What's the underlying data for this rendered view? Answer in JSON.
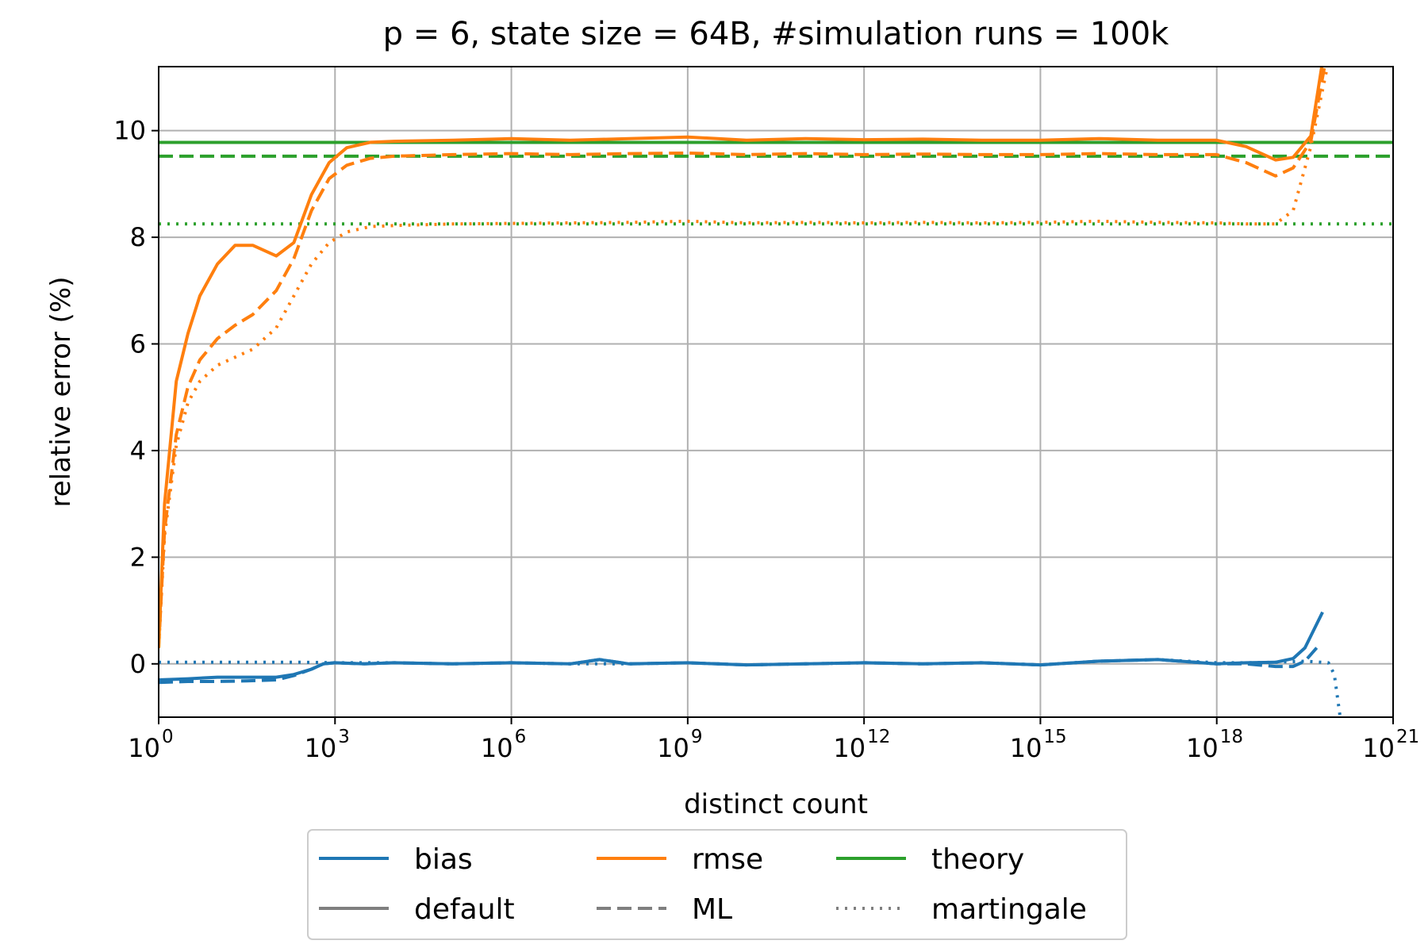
{
  "chart_data": {
    "type": "line",
    "title": "p = 6, state size = 64B, #simulation runs = 100k",
    "xlabel": "distinct count",
    "ylabel": "relative error (%)",
    "x_scale": "log10",
    "xlim_log10": [
      0,
      21
    ],
    "ylim": [
      -1,
      11.2
    ],
    "grid": true,
    "x_ticks": [
      {
        "base": "10",
        "exp": "0"
      },
      {
        "base": "10",
        "exp": "3"
      },
      {
        "base": "10",
        "exp": "6"
      },
      {
        "base": "10",
        "exp": "9"
      },
      {
        "base": "10",
        "exp": "12"
      },
      {
        "base": "10",
        "exp": "15"
      },
      {
        "base": "10",
        "exp": "18"
      },
      {
        "base": "10",
        "exp": "21"
      }
    ],
    "y_ticks": [
      "0",
      "2",
      "4",
      "6",
      "8",
      "10"
    ],
    "colors": {
      "bias": "#1f77b4",
      "rmse": "#ff7f0e",
      "theory": "#2ca02c",
      "estimator_key": "#7f7f7f",
      "grid": "#b0b0b0"
    },
    "theory_lines": [
      {
        "estimator": "default",
        "value": 9.78
      },
      {
        "estimator": "ML",
        "value": 9.52
      },
      {
        "estimator": "martingale",
        "value": 8.25
      }
    ],
    "series": [
      {
        "name": "rmse default",
        "metric": "rmse",
        "estimator": "default",
        "x_log10": [
          0,
          0.1,
          0.3,
          0.5,
          0.7,
          1.0,
          1.3,
          1.6,
          2.0,
          2.3,
          2.6,
          2.9,
          3.2,
          3.6,
          4.0,
          5,
          6,
          7,
          8,
          9,
          10,
          11,
          12,
          13,
          14,
          15,
          16,
          17,
          18,
          18.5,
          19.0,
          19.3,
          19.6,
          19.8
        ],
        "values": [
          0.3,
          3.0,
          5.3,
          6.2,
          6.9,
          7.5,
          7.85,
          7.85,
          7.65,
          7.9,
          8.8,
          9.4,
          9.68,
          9.78,
          9.8,
          9.82,
          9.85,
          9.82,
          9.85,
          9.88,
          9.82,
          9.85,
          9.83,
          9.84,
          9.82,
          9.82,
          9.85,
          9.82,
          9.82,
          9.7,
          9.45,
          9.5,
          9.9,
          11.3
        ]
      },
      {
        "name": "rmse ML",
        "metric": "rmse",
        "estimator": "ML",
        "x_log10": [
          0,
          0.1,
          0.3,
          0.5,
          0.7,
          1.0,
          1.3,
          1.6,
          2.0,
          2.3,
          2.6,
          2.9,
          3.2,
          3.6,
          4.0,
          5,
          6,
          7,
          8,
          9,
          10,
          11,
          12,
          13,
          14,
          15,
          16,
          17,
          18,
          18.5,
          19.0,
          19.3,
          19.6,
          19.85
        ],
        "values": [
          0.3,
          2.5,
          4.3,
          5.2,
          5.7,
          6.1,
          6.35,
          6.55,
          7.0,
          7.6,
          8.5,
          9.1,
          9.35,
          9.48,
          9.52,
          9.55,
          9.57,
          9.55,
          9.57,
          9.58,
          9.55,
          9.57,
          9.55,
          9.56,
          9.55,
          9.55,
          9.57,
          9.55,
          9.55,
          9.4,
          9.15,
          9.3,
          9.8,
          11.3
        ]
      },
      {
        "name": "rmse martingale",
        "metric": "rmse",
        "estimator": "martingale",
        "x_log10": [
          0,
          0.1,
          0.3,
          0.5,
          0.7,
          1.0,
          1.3,
          1.6,
          2.0,
          2.3,
          2.6,
          2.9,
          3.2,
          3.6,
          4.0,
          5,
          6,
          7,
          8,
          9,
          10,
          11,
          12,
          13,
          14,
          15,
          16,
          17,
          18,
          18.5,
          19.0,
          19.3,
          19.6,
          19.9
        ],
        "values": [
          0.3,
          2.4,
          4.1,
          4.9,
          5.3,
          5.6,
          5.75,
          5.9,
          6.3,
          6.9,
          7.5,
          7.9,
          8.1,
          8.2,
          8.22,
          8.25,
          8.26,
          8.27,
          8.28,
          8.3,
          8.27,
          8.28,
          8.27,
          8.28,
          8.27,
          8.28,
          8.3,
          8.28,
          8.27,
          8.25,
          8.25,
          8.5,
          9.7,
          11.3
        ]
      },
      {
        "name": "bias default",
        "metric": "bias",
        "estimator": "default",
        "x_log10": [
          0,
          0.5,
          1.0,
          1.5,
          2.0,
          2.3,
          2.6,
          2.8,
          3.0,
          3.5,
          4,
          5,
          6,
          7,
          7.5,
          8,
          9,
          10,
          11,
          12,
          13,
          14,
          15,
          16,
          17,
          18,
          18.5,
          19.0,
          19.3,
          19.5,
          19.8
        ],
        "values": [
          -0.3,
          -0.28,
          -0.25,
          -0.25,
          -0.25,
          -0.2,
          -0.1,
          0.0,
          0.02,
          0.0,
          0.02,
          0.0,
          0.02,
          0.0,
          0.08,
          0.0,
          0.02,
          -0.02,
          0.0,
          0.02,
          0.0,
          0.02,
          -0.02,
          0.05,
          0.08,
          0.0,
          0.02,
          0.03,
          0.1,
          0.3,
          0.97
        ]
      },
      {
        "name": "bias ML",
        "metric": "bias",
        "estimator": "ML",
        "x_log10": [
          0,
          0.5,
          1.0,
          1.5,
          2.0,
          2.3,
          2.6,
          2.8,
          3.0,
          3.5,
          4,
          5,
          6,
          7,
          7.5,
          8,
          9,
          10,
          11,
          12,
          13,
          14,
          15,
          16,
          17,
          18,
          18.5,
          19.0,
          19.3,
          19.5,
          19.7
        ],
        "values": [
          -0.35,
          -0.33,
          -0.33,
          -0.32,
          -0.3,
          -0.22,
          -0.1,
          0.0,
          0.02,
          0.0,
          0.02,
          0.0,
          0.02,
          0.0,
          0.08,
          0.0,
          0.02,
          -0.02,
          0.0,
          0.02,
          0.0,
          0.02,
          -0.02,
          0.05,
          0.08,
          0.0,
          0.0,
          -0.05,
          -0.05,
          0.05,
          0.3
        ]
      },
      {
        "name": "bias martingale",
        "metric": "bias",
        "estimator": "martingale",
        "x_log10": [
          0,
          0.5,
          1.0,
          1.5,
          2.0,
          2.5,
          3,
          4,
          5,
          6,
          7,
          8,
          9,
          10,
          11,
          12,
          13,
          14,
          15,
          16,
          17,
          18,
          18.5,
          19.0,
          19.5,
          19.9,
          20.0,
          20.05,
          20.1
        ],
        "values": [
          0.03,
          0.03,
          0.03,
          0.03,
          0.03,
          0.03,
          0.02,
          0.02,
          0.0,
          0.02,
          0.0,
          0.0,
          0.02,
          -0.02,
          0.0,
          0.02,
          0.0,
          0.02,
          -0.02,
          0.05,
          0.08,
          0.02,
          0.02,
          0.03,
          0.05,
          0.02,
          -0.2,
          -0.6,
          -1.0
        ]
      }
    ],
    "legend": {
      "placement": "below-center",
      "entries": [
        {
          "label": "bias",
          "color": "#1f77b4",
          "style": "solid"
        },
        {
          "label": "rmse",
          "color": "#ff7f0e",
          "style": "solid"
        },
        {
          "label": "theory",
          "color": "#2ca02c",
          "style": "solid"
        },
        {
          "label": "default",
          "color": "#7f7f7f",
          "style": "solid"
        },
        {
          "label": "ML",
          "color": "#7f7f7f",
          "style": "dashed"
        },
        {
          "label": "martingale",
          "color": "#7f7f7f",
          "style": "dotted"
        }
      ]
    }
  }
}
